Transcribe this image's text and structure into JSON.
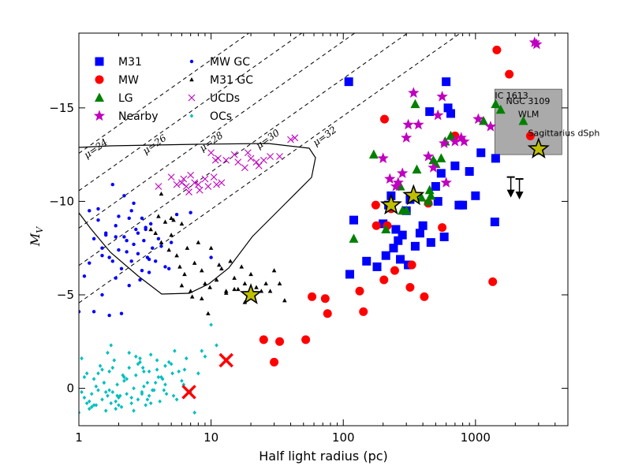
{
  "chart_data": {
    "type": "scatter",
    "xlabel": "Half light radius (pc)",
    "ylabel": "M_V",
    "ylabel_main": "M",
    "ylabel_sub": "V",
    "xscale": "log",
    "xlim": [
      1,
      5000
    ],
    "ylim": [
      2,
      -19
    ],
    "y_inverted": true,
    "x_ticks": [
      1,
      10,
      100,
      1000
    ],
    "x_tick_labels": [
      "1",
      "10",
      "100",
      "1000"
    ],
    "y_ticks": [
      -15,
      -10,
      -5,
      0
    ],
    "y_tick_labels": [
      "−15",
      "−10",
      "−5",
      "0"
    ],
    "grid": false,
    "legend_position": "top-left",
    "legend": [
      {
        "label": "M31",
        "marker": "square",
        "color": "#0000ff"
      },
      {
        "label": "MW GC",
        "marker": "circle-small",
        "color": "#0000ff"
      },
      {
        "label": "MW",
        "marker": "circle",
        "color": "#ff0000"
      },
      {
        "label": "M31 GC",
        "marker": "triangle-small",
        "color": "#000000"
      },
      {
        "label": "LG",
        "marker": "triangle",
        "color": "#008000"
      },
      {
        "label": "UCDs",
        "marker": "x",
        "color": "#bf00bf"
      },
      {
        "label": "Nearby",
        "marker": "star",
        "color": "#bf00bf"
      },
      {
        "label": "OCs",
        "marker": "diamond-small",
        "color": "#00bfbf"
      }
    ],
    "mu_lines": [
      {
        "mu": 24,
        "label": "μ=24"
      },
      {
        "mu": 26,
        "label": "μ=26"
      },
      {
        "mu": 28,
        "label": "μ=28"
      },
      {
        "mu": 30,
        "label": "μ=30"
      },
      {
        "mu": 32,
        "label": "μ=32"
      }
    ],
    "annotations": [
      {
        "text": "IC 1613",
        "x": 1400,
        "y": -15.5
      },
      {
        "text": "NGC 3109",
        "x": 1700,
        "y": -15.2
      },
      {
        "text": "WLM",
        "x": 2100,
        "y": -14.5
      },
      {
        "text": "Sagittarius dSph",
        "x": 2500,
        "y": -13.5
      }
    ],
    "shaded_box": {
      "x": [
        1400,
        4500
      ],
      "y": [
        -16,
        -12.5
      ],
      "color": "#aaaaaa"
    },
    "series": [
      {
        "name": "M31",
        "marker": "square",
        "color": "#0000ff",
        "x": [
          110,
          112,
          120,
          150,
          180,
          200,
          210,
          220,
          230,
          240,
          250,
          260,
          270,
          280,
          300,
          310,
          320,
          350,
          380,
          400,
          450,
          460,
          500,
          520,
          550,
          580,
          600,
          620,
          650,
          700,
          750,
          800,
          900,
          1000,
          1100,
          1400,
          1420
        ],
        "y": [
          -16.4,
          -6.1,
          -9,
          -6.8,
          -6.5,
          -8.8,
          -7.1,
          -9.8,
          -10.3,
          -7.5,
          -8.5,
          -7.9,
          -6.9,
          -8.2,
          -9.5,
          -6.6,
          -10.1,
          -7.6,
          -8.3,
          -8.7,
          -14.8,
          -7.8,
          -10.8,
          -10,
          -11.5,
          -8.1,
          -16.4,
          -15,
          -14.7,
          -11.9,
          -9.8,
          -9.8,
          -11.6,
          -10.3,
          -12.6,
          -8.9,
          -12.3
        ]
      },
      {
        "name": "MW",
        "marker": "circle",
        "color": "#ff0000",
        "x": [
          25,
          30,
          33,
          52,
          58,
          73,
          76,
          133,
          142,
          176,
          178,
          203,
          205,
          215,
          230,
          245,
          320,
          330,
          410,
          440,
          560,
          700,
          1350,
          1450,
          1800,
          2600
        ],
        "y": [
          -2.6,
          -1.4,
          -2.5,
          -2.6,
          -4.9,
          -4.8,
          -4,
          -5.2,
          -4.1,
          -9.8,
          -8.7,
          -5.8,
          -14.4,
          -8.7,
          -9.6,
          -6.3,
          -5.4,
          -6.6,
          -4.9,
          -9.9,
          -8.6,
          -13.5,
          -5.7,
          -18.1,
          -16.8,
          -13.5
        ]
      },
      {
        "name": "LG",
        "marker": "triangle",
        "color": "#008000",
        "x": [
          120,
          170,
          210,
          270,
          280,
          300,
          350,
          360,
          390,
          440,
          450,
          460,
          480,
          500,
          550,
          590,
          650,
          1150,
          1420,
          1550,
          2300
        ],
        "y": [
          -8,
          -12.5,
          -8.5,
          -10.8,
          -9.5,
          -9.5,
          -15.2,
          -11.7,
          -10.2,
          -10,
          -10.6,
          -10.3,
          -12.2,
          -12,
          -12.3,
          -13.2,
          -13.5,
          -14.3,
          -15.2,
          -14.9,
          -14.3
        ]
      },
      {
        "name": "Nearby",
        "marker": "star",
        "color": "#bf00bf",
        "x": [
          200,
          225,
          250,
          260,
          280,
          300,
          310,
          340,
          370,
          440,
          480,
          520,
          560,
          580,
          600,
          700,
          780,
          820,
          1050,
          1300,
          2800,
          2900
        ],
        "y": [
          -12.3,
          -11.2,
          -10.8,
          -11,
          -11.5,
          -13.4,
          -14.1,
          -15.8,
          -14.1,
          -12.4,
          -11.8,
          -14.6,
          -15.6,
          -13.1,
          -11,
          -13.2,
          -13.4,
          -13.2,
          -14.4,
          -14,
          -18.5,
          -18.4
        ]
      },
      {
        "name": "Nearby (highlighted)",
        "marker": "star-big",
        "color": "#bfbf00",
        "x": [
          20,
          230,
          340,
          3000
        ],
        "y": [
          -5,
          -9.8,
          -10.3,
          -12.8
        ]
      },
      {
        "name": "Upper limits",
        "marker": "arrow-down",
        "color": "#000000",
        "x": [
          1850,
          2150
        ],
        "y": [
          -11.3,
          -11.2
        ]
      },
      {
        "name": "UCDs",
        "marker": "x",
        "color": "#bf00bf",
        "x": [
          4,
          5,
          5.5,
          6,
          6.2,
          6.5,
          6.8,
          7,
          7.5,
          8,
          8.2,
          9,
          9.5,
          10,
          10.5,
          10.8,
          11,
          11.3,
          12,
          13,
          15,
          16,
          18,
          19,
          20,
          22,
          23,
          25,
          28,
          33,
          40,
          43
        ],
        "y": [
          -10.8,
          -11.3,
          -10.9,
          -11,
          -11.2,
          -10.8,
          -10.5,
          -11.4,
          -11,
          -10.9,
          -10.6,
          -11.2,
          -10.8,
          -12.6,
          -11.3,
          -12.2,
          -10.9,
          -12.3,
          -11,
          -12.2,
          -12.5,
          -12.1,
          -11.8,
          -12.6,
          -12.3,
          -12.1,
          -11.9,
          -12.2,
          -12.4,
          -12.4,
          -13.3,
          -13.4
        ]
      },
      {
        "name": "MW GC",
        "marker": "circle-small",
        "color": "#0000ff",
        "x": [
          1,
          1.1,
          1.2,
          1.3,
          1.3,
          1.4,
          1.5,
          1.5,
          1.6,
          1.7,
          1.7,
          1.8,
          1.9,
          1.9,
          2,
          2,
          2.1,
          2.2,
          2.3,
          2.4,
          2.5,
          2.5,
          2.6,
          2.7,
          2.8,
          2.9,
          3,
          3,
          3.1,
          3.2,
          3.3,
          3.4,
          3.5,
          3.6,
          3.8,
          4,
          4.2,
          4.5,
          5,
          2.2,
          1.8,
          1.6,
          2.4,
          2.8,
          3.4,
          1.4,
          1.2,
          1.5,
          2.1,
          2.6,
          3.2,
          4.8,
          5.5,
          7,
          10,
          1.9,
          2.3
        ],
        "y": [
          -4.1,
          -6,
          -9.5,
          -8,
          -4.1,
          -9,
          -7.5,
          -5,
          -8.3,
          -7,
          -3.9,
          -6.8,
          -8.7,
          -5.9,
          -9.2,
          -7.4,
          -6.4,
          -8.1,
          -7.9,
          -5.5,
          -9.5,
          -6.8,
          -7.7,
          -8.5,
          -7.2,
          -5.8,
          -9.1,
          -6.3,
          -7.9,
          -8.6,
          -7,
          -6.2,
          -8.8,
          -7.5,
          -6.8,
          -8,
          -7.6,
          -6.5,
          -7.8,
          -10.3,
          -10.9,
          -8.2,
          -9.1,
          -8.3,
          -6.9,
          -9.6,
          -6.7,
          -7.1,
          -4,
          -9.9,
          -8.5,
          -6.4,
          -9.3,
          -9.4,
          -7,
          -8.1,
          -7.3
        ]
      },
      {
        "name": "M31 GC",
        "marker": "triangle-small",
        "color": "#000000",
        "x": [
          3.5,
          3.8,
          4,
          4.2,
          4.5,
          4.8,
          5,
          5.2,
          5.5,
          5.8,
          6,
          6.3,
          6.6,
          7,
          7.5,
          8,
          8.5,
          9,
          9.5,
          10,
          11,
          12,
          13,
          14,
          15,
          16,
          17,
          18,
          20,
          22,
          24,
          26,
          28,
          30,
          33,
          36,
          4.2,
          5,
          6,
          7.2,
          8.5,
          9.8,
          11.5,
          13,
          15,
          18
        ],
        "y": [
          -8.5,
          -8.3,
          -9.2,
          -7.8,
          -8.9,
          -7.4,
          -8.2,
          -9,
          -7.1,
          -6.5,
          -8.8,
          -6.1,
          -7.5,
          -5.2,
          -6.7,
          -7.8,
          -6.3,
          -5.6,
          -4,
          -7.5,
          -5.8,
          -6.4,
          -5.1,
          -6.8,
          -5.9,
          -5.3,
          -6.5,
          -4.6,
          -6.1,
          -5.4,
          -5.2,
          -5.6,
          -5.2,
          -6.3,
          -5.6,
          -4.7,
          -10.4,
          -9.1,
          -5.5,
          -4.9,
          -4.8,
          -5.4,
          -6.6,
          -5.2,
          -5.3,
          -5.6
        ]
      },
      {
        "name": "OCs",
        "marker": "diamond-small",
        "color": "#00bfbf",
        "x": [
          1,
          1.05,
          1.1,
          1.15,
          1.2,
          1.25,
          1.3,
          1.35,
          1.4,
          1.45,
          1.5,
          1.55,
          1.6,
          1.65,
          1.7,
          1.75,
          1.8,
          1.85,
          1.9,
          1.95,
          2,
          2.1,
          2.2,
          2.3,
          2.4,
          2.5,
          2.6,
          2.7,
          2.8,
          2.9,
          3,
          3.1,
          3.2,
          3.3,
          3.4,
          3.5,
          3.7,
          3.9,
          4.1,
          4.3,
          4.6,
          5,
          5.5,
          6,
          6.5,
          7,
          8,
          9,
          1.1,
          1.3,
          1.5,
          1.7,
          1.9,
          2.2,
          2.5,
          2.8,
          3.1,
          3.5,
          4,
          4.5,
          5.2,
          6.2,
          1.2,
          1.4,
          1.6,
          1.8,
          2,
          2.3,
          2.7,
          3,
          3.4,
          3.9,
          4.5,
          5.3,
          1.05,
          1.25,
          1.55,
          1.75,
          2.05,
          2.4,
          2.9,
          3.3,
          3.8,
          4.4,
          5.1,
          6.3,
          7.5,
          1.15,
          1.35,
          1.65,
          1.95,
          2.15,
          2.6,
          3.05,
          3.6,
          4.2,
          4.8,
          5.7,
          8.5,
          10,
          11
        ],
        "y": [
          1.3,
          0.2,
          0.5,
          -0.8,
          1.1,
          0.3,
          -0.5,
          0.9,
          0.1,
          -1.2,
          0.6,
          -0.3,
          1.2,
          0.4,
          -0.9,
          0.8,
          0.2,
          -1.5,
          0.7,
          -0.2,
          0.5,
          1,
          -0.6,
          0.3,
          -1.1,
          0.8,
          0,
          -0.7,
          0.6,
          -1.4,
          0.2,
          -0.9,
          0.9,
          -0.3,
          0.4,
          -1.8,
          0.1,
          -1,
          0.7,
          -0.5,
          0.3,
          -1.3,
          0.6,
          -0.4,
          -1.6,
          0.2,
          -0.8,
          -1.7,
          -0.6,
          0.9,
          -1,
          0.1,
          1.1,
          -0.4,
          0.5,
          -1.3,
          -0.1,
          0.8,
          -0.6,
          -1.2,
          0.4,
          -0.2,
          0.7,
          -0.8,
          0.2,
          -1.1,
          0.9,
          -0.5,
          -1.7,
          0.3,
          -0.9,
          -1.5,
          -0.2,
          -2,
          -1.6,
          1,
          -0.3,
          -2.3,
          0.4,
          -1.9,
          -1.6,
          0.6,
          -0.3,
          0.1,
          -0.8,
          -1,
          1.3,
          0.8,
          -0.1,
          -1.9,
          0.4,
          -0.7,
          1.2,
          -1.1,
          0.1,
          -0.6,
          -1.4,
          -0.9,
          -2,
          -3.4,
          -2.3
        ]
      },
      {
        "name": "Highlighted OCs",
        "marker": "x-big",
        "color": "#ff0000",
        "x": [
          6.8,
          13
        ],
        "y": [
          0.2,
          -1.5
        ]
      }
    ]
  }
}
